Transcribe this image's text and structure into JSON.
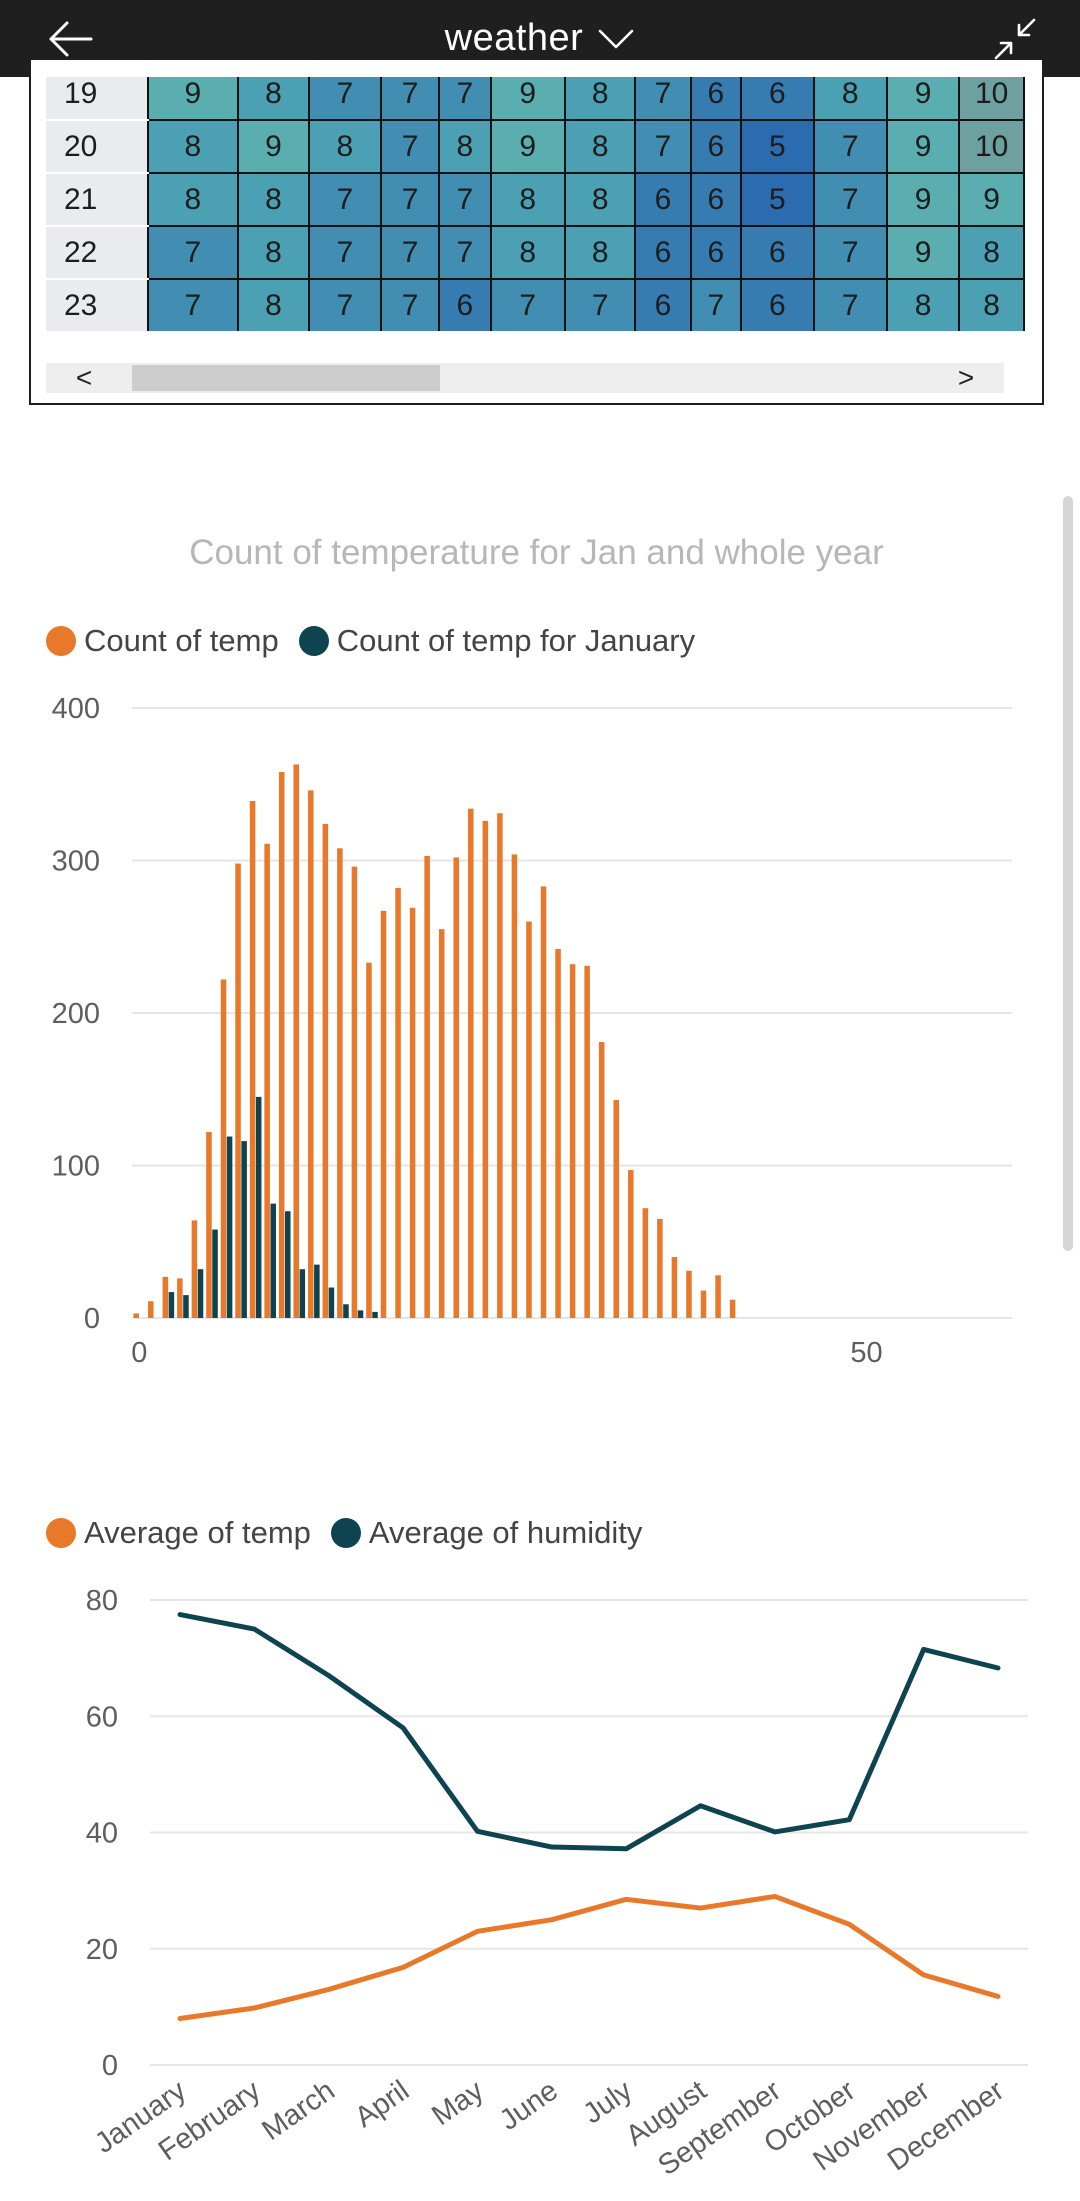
{
  "header": {
    "title": "weather"
  },
  "matrix": {
    "rows": [
      {
        "label": "19",
        "cells": [
          "9",
          "8",
          "7",
          "7",
          "7",
          "9",
          "8",
          "7",
          "6",
          "6",
          "8",
          "9",
          "10"
        ]
      },
      {
        "label": "20",
        "cells": [
          "8",
          "9",
          "8",
          "7",
          "8",
          "9",
          "8",
          "7",
          "6",
          "5",
          "7",
          "9",
          "10"
        ]
      },
      {
        "label": "21",
        "cells": [
          "8",
          "8",
          "7",
          "7",
          "7",
          "8",
          "8",
          "6",
          "6",
          "5",
          "7",
          "9",
          "9"
        ]
      },
      {
        "label": "22",
        "cells": [
          "7",
          "8",
          "7",
          "7",
          "7",
          "8",
          "8",
          "6",
          "6",
          "6",
          "7",
          "9",
          "8"
        ]
      },
      {
        "label": "23",
        "cells": [
          "7",
          "8",
          "7",
          "7",
          "6",
          "7",
          "7",
          "6",
          "7",
          "6",
          "7",
          "8",
          "8"
        ]
      }
    ],
    "scroll_left": "<",
    "scroll_right": ">"
  },
  "chart1_title": "Count of temperature for Jan and whole year",
  "legend1": [
    {
      "label": "Count of temp",
      "color": "#E8782A"
    },
    {
      "label": "Count of temp for January",
      "color": "#0E444F"
    }
  ],
  "legend2": [
    {
      "label": "Average of temp",
      "color": "#E8782A"
    },
    {
      "label": "Average of humidity",
      "color": "#0E444F"
    }
  ],
  "chart_data": [
    {
      "type": "bar",
      "title": "Count of temperature for Jan and whole year",
      "x_ticks": [
        "0",
        "50"
      ],
      "y_ticks": [
        "0",
        "100",
        "200",
        "300",
        "400"
      ],
      "xlim": [
        -0.5,
        60
      ],
      "ylim": [
        0,
        400
      ],
      "grid": true,
      "legend_position": "top-left",
      "series": [
        {
          "name": "Count of temp",
          "color": "#E8782A",
          "x": [
            0,
            1,
            2,
            3,
            4,
            5,
            6,
            7,
            8,
            9,
            10,
            11,
            12,
            13,
            14,
            15,
            16,
            17,
            18,
            19,
            20,
            21,
            22,
            23,
            24,
            25,
            26,
            27,
            28,
            29,
            30,
            31,
            32,
            33,
            34,
            35,
            36,
            37,
            38,
            39,
            40,
            41
          ],
          "values": [
            3,
            11,
            27,
            26,
            64,
            122,
            222,
            298,
            339,
            311,
            358,
            363,
            346,
            324,
            308,
            296,
            233,
            267,
            282,
            269,
            303,
            255,
            302,
            334,
            326,
            331,
            304,
            260,
            283,
            242,
            232,
            231,
            181,
            143,
            97,
            72,
            65,
            40,
            31,
            18,
            28,
            12
          ]
        },
        {
          "name": "Count of temp for January",
          "color": "#0E444F",
          "x": [
            2,
            3,
            4,
            5,
            6,
            7,
            8,
            9,
            10,
            11,
            12,
            13,
            14,
            15,
            16
          ],
          "values": [
            17,
            15,
            32,
            58,
            119,
            116,
            145,
            75,
            70,
            32,
            35,
            20,
            9,
            5,
            4
          ]
        }
      ]
    },
    {
      "type": "line",
      "categories": [
        "January",
        "February",
        "March",
        "April",
        "May",
        "June",
        "July",
        "August",
        "September",
        "October",
        "November",
        "December"
      ],
      "y_ticks": [
        "0",
        "20",
        "40",
        "60",
        "80"
      ],
      "ylim": [
        0,
        80
      ],
      "grid": true,
      "legend_position": "top-left",
      "series": [
        {
          "name": "Average of temp",
          "color": "#E8782A",
          "values": [
            8,
            9.8,
            13,
            16.8,
            23,
            25,
            28.5,
            27,
            29,
            24.2,
            15.5,
            11.8
          ]
        },
        {
          "name": "Average of humidity",
          "color": "#0E444F",
          "values": [
            77.5,
            75,
            67,
            58,
            40.2,
            37.5,
            37.2,
            44.6,
            40.1,
            42.2,
            71.5,
            68.3
          ]
        }
      ]
    }
  ]
}
